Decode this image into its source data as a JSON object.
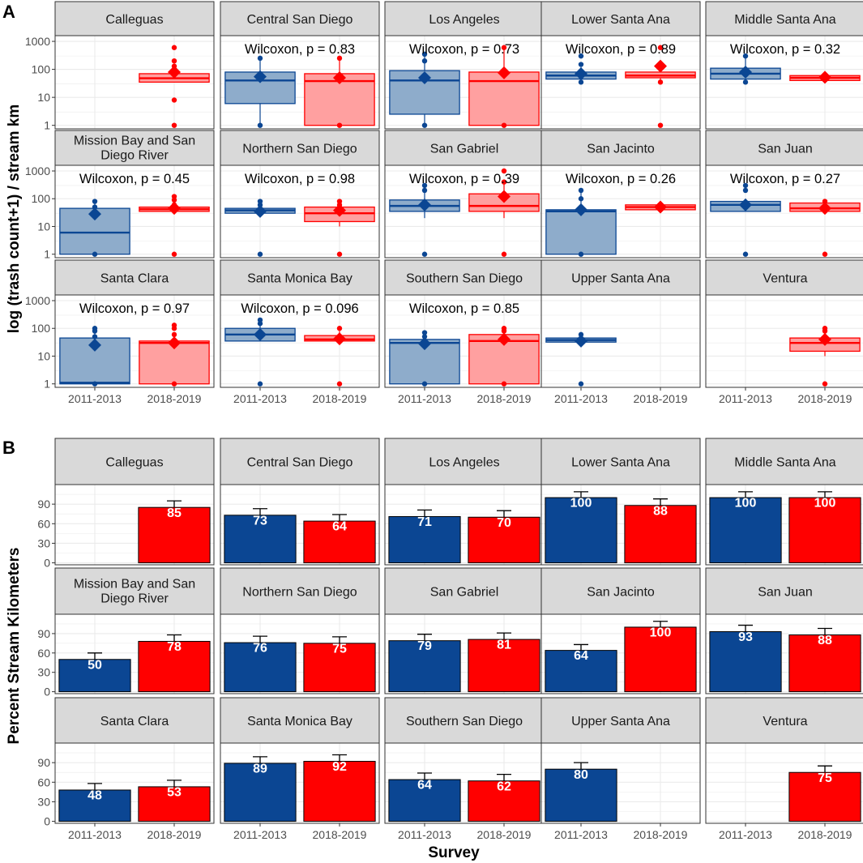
{
  "colors": {
    "blue": "#0B4693",
    "red": "#FF0000",
    "blue_fill": "#8EACCB",
    "red_fill": "#FFA0A0",
    "strip": "#D9D9D9",
    "grid": "#EBEBEB"
  },
  "chart_data": [
    {
      "id": "A",
      "type": "boxplot",
      "tag": "A",
      "ylabel": "log (trash count+1) / stream km",
      "xlabel": "",
      "yscale": "log10",
      "ylim": [
        0.75,
        1600
      ],
      "yticks": [
        1,
        10,
        100,
        1000
      ],
      "ytick_labels": [
        "1",
        "10",
        "100",
        "1000"
      ],
      "categories": [
        "2011-2013",
        "2018-2019"
      ],
      "series_names": [
        "2011-2013",
        "2018-2019"
      ],
      "facets": [
        {
          "name": "Calleguas",
          "strip": [
            "Calleguas"
          ],
          "pvalue": "",
          "boxes": [
            null,
            {
              "q1": 35,
              "median": 48,
              "q3": 70,
              "wlo": 35,
              "whi": 70,
              "mean": 80,
              "outliers": [
                1,
                8,
                100,
                130,
                200,
                600
              ]
            }
          ]
        },
        {
          "name": "Central San Diego",
          "strip": [
            "Central San Diego"
          ],
          "pvalue": "Wilcoxon, p = 0.83",
          "boxes": [
            {
              "q1": 6,
              "median": 40,
              "q3": 80,
              "wlo": 1,
              "whi": 250,
              "mean": 55,
              "outliers": [
                1,
                250
              ]
            },
            {
              "q1": 1,
              "median": 38,
              "q3": 70,
              "wlo": 1,
              "whi": 250,
              "mean": 50,
              "outliers": [
                1,
                250
              ]
            }
          ]
        },
        {
          "name": "Los Angeles",
          "strip": [
            "Los Angeles"
          ],
          "pvalue": "Wilcoxon, p = 0.73",
          "boxes": [
            {
              "q1": 2.5,
              "median": 40,
              "q3": 90,
              "wlo": 1,
              "whi": 350,
              "mean": 50,
              "outliers": [
                1,
                200,
                350
              ]
            },
            {
              "q1": 1,
              "median": 38,
              "q3": 80,
              "wlo": 1,
              "whi": 600,
              "mean": 75,
              "outliers": [
                1,
                600
              ]
            }
          ]
        },
        {
          "name": "Lower Santa Ana",
          "strip": [
            "Lower Santa Ana"
          ],
          "pvalue": "Wilcoxon, p = 0.89",
          "boxes": [
            {
              "q1": 45,
              "median": 60,
              "q3": 80,
              "wlo": 35,
              "whi": 120,
              "mean": 70,
              "outliers": [
                35,
                150,
                300
              ]
            },
            {
              "q1": 50,
              "median": 60,
              "q3": 80,
              "wlo": 35,
              "whi": 100,
              "mean": 130,
              "outliers": [
                1,
                35,
                150,
                600
              ]
            }
          ]
        },
        {
          "name": "Middle Santa Ana",
          "strip": [
            "Middle Santa Ana"
          ],
          "pvalue": "Wilcoxon, p = 0.32",
          "boxes": [
            {
              "q1": 45,
              "median": 70,
              "q3": 110,
              "wlo": 35,
              "whi": 300,
              "mean": 80,
              "outliers": [
                35,
                300
              ]
            },
            {
              "q1": 40,
              "median": 50,
              "q3": 60,
              "wlo": 40,
              "whi": 70,
              "mean": 52,
              "outliers": []
            }
          ]
        },
        {
          "name": "Mission Bay and San Diego River",
          "strip": [
            "Mission Bay and San",
            "Diego River"
          ],
          "pvalue": "Wilcoxon, p = 0.45",
          "boxes": [
            {
              "q1": 1,
              "median": 6,
              "q3": 45,
              "wlo": 1,
              "whi": 80,
              "mean": 28,
              "outliers": [
                1,
                30,
                50,
                80
              ]
            },
            {
              "q1": 35,
              "median": 42,
              "q3": 50,
              "wlo": 30,
              "whi": 60,
              "mean": 45,
              "outliers": [
                1,
                60,
                90,
                120
              ]
            }
          ]
        },
        {
          "name": "Northern San Diego",
          "strip": [
            "Northern San Diego"
          ],
          "pvalue": "Wilcoxon, p = 0.98",
          "boxes": [
            {
              "q1": 30,
              "median": 38,
              "q3": 45,
              "wlo": 25,
              "whi": 80,
              "mean": 35,
              "outliers": [
                1,
                60,
                80
              ]
            },
            {
              "q1": 15,
              "median": 30,
              "q3": 50,
              "wlo": 10,
              "whi": 80,
              "mean": 38,
              "outliers": [
                1,
                60,
                80
              ]
            }
          ]
        },
        {
          "name": "San Gabriel",
          "strip": [
            "San Gabriel"
          ],
          "pvalue": "Wilcoxon, p = 0.39",
          "boxes": [
            {
              "q1": 35,
              "median": 55,
              "q3": 90,
              "wlo": 20,
              "whi": 300,
              "mean": 60,
              "outliers": [
                1,
                200,
                300
              ]
            },
            {
              "q1": 35,
              "median": 55,
              "q3": 150,
              "wlo": 20,
              "whi": 400,
              "mean": 120,
              "outliers": [
                1,
                400,
                1000
              ]
            }
          ]
        },
        {
          "name": "San Jacinto",
          "strip": [
            "San Jacinto"
          ],
          "pvalue": "Wilcoxon, p = 0.26",
          "boxes": [
            {
              "q1": 1,
              "median": 35,
              "q3": 40,
              "wlo": 1,
              "whi": 200,
              "mean": 40,
              "outliers": [
                1,
                100,
                200
              ]
            },
            {
              "q1": 40,
              "median": 50,
              "q3": 60,
              "wlo": 40,
              "whi": 60,
              "mean": 50,
              "outliers": []
            }
          ]
        },
        {
          "name": "San Juan",
          "strip": [
            "San Juan"
          ],
          "pvalue": "Wilcoxon, p = 0.27",
          "boxes": [
            {
              "q1": 35,
              "median": 60,
              "q3": 80,
              "wlo": 35,
              "whi": 100,
              "mean": 60,
              "outliers": [
                1,
                200,
                300
              ]
            },
            {
              "q1": 35,
              "median": 45,
              "q3": 70,
              "wlo": 30,
              "whi": 80,
              "mean": 45,
              "outliers": [
                1,
                80
              ]
            }
          ]
        },
        {
          "name": "Santa Clara",
          "strip": [
            "Santa Clara"
          ],
          "pvalue": "Wilcoxon, p = 0.97",
          "boxes": [
            {
              "q1": 1,
              "median": 1.1,
              "q3": 45,
              "wlo": 1,
              "whi": 100,
              "mean": 25,
              "outliers": [
                1,
                50,
                80,
                100
              ]
            },
            {
              "q1": 1,
              "median": 30,
              "q3": 35,
              "wlo": 1,
              "whi": 60,
              "mean": 30,
              "outliers": [
                1,
                60,
                100,
                130
              ]
            }
          ]
        },
        {
          "name": "Santa Monica Bay",
          "strip": [
            "Santa Monica Bay"
          ],
          "pvalue": "Wilcoxon, p = 0.096",
          "boxes": [
            {
              "q1": 35,
              "median": 60,
              "q3": 100,
              "wlo": 35,
              "whi": 150,
              "mean": 60,
              "outliers": [
                1,
                150,
                200
              ]
            },
            {
              "q1": 35,
              "median": 40,
              "q3": 55,
              "wlo": 35,
              "whi": 80,
              "mean": 42,
              "outliers": [
                1,
                100
              ]
            }
          ]
        },
        {
          "name": "Southern San Diego",
          "strip": [
            "Southern San Diego"
          ],
          "pvalue": "Wilcoxon, p = 0.85",
          "boxes": [
            {
              "q1": 1,
              "median": 30,
              "q3": 40,
              "wlo": 1,
              "whi": 70,
              "mean": 28,
              "outliers": [
                1,
                50,
                70
              ]
            },
            {
              "q1": 1,
              "median": 35,
              "q3": 60,
              "wlo": 1,
              "whi": 100,
              "mean": 40,
              "outliers": [
                1,
                80,
                100
              ]
            }
          ]
        },
        {
          "name": "Upper Santa Ana",
          "strip": [
            "Upper Santa Ana"
          ],
          "pvalue": "",
          "boxes": [
            {
              "q1": 32,
              "median": 38,
              "q3": 45,
              "wlo": 30,
              "whi": 60,
              "mean": 35,
              "outliers": [
                1,
                60
              ]
            },
            null
          ]
        },
        {
          "name": "Ventura",
          "strip": [
            "Ventura"
          ],
          "pvalue": "",
          "boxes": [
            null,
            {
              "q1": 15,
              "median": 30,
              "q3": 45,
              "wlo": 10,
              "whi": 100,
              "mean": 40,
              "outliers": [
                1,
                80,
                100
              ]
            }
          ]
        }
      ]
    },
    {
      "id": "B",
      "type": "bar",
      "tag": "B",
      "ylabel": "Percent Stream Kilometers",
      "xlabel": "Survey",
      "ylim": [
        -3,
        120
      ],
      "yticks": [
        0,
        30,
        60,
        90
      ],
      "ytick_labels": [
        "0",
        "30",
        "60",
        "90"
      ],
      "categories": [
        "2011-2013",
        "2018-2019"
      ],
      "facets": [
        {
          "name": "Calleguas",
          "strip": [
            "Calleguas"
          ],
          "values": [
            null,
            85
          ],
          "labels": [
            "",
            "85"
          ],
          "err": [
            null,
            10
          ]
        },
        {
          "name": "Central San Diego",
          "strip": [
            "Central San Diego"
          ],
          "values": [
            73,
            64
          ],
          "labels": [
            "73",
            "64"
          ],
          "err": [
            10,
            10
          ]
        },
        {
          "name": "Los Angeles",
          "strip": [
            "Los Angeles"
          ],
          "values": [
            71,
            70
          ],
          "labels": [
            "71",
            "70"
          ],
          "err": [
            10,
            10
          ]
        },
        {
          "name": "Lower Santa Ana",
          "strip": [
            "Lower Santa Ana"
          ],
          "values": [
            100,
            88
          ],
          "labels": [
            "100",
            "88"
          ],
          "err": [
            9,
            10
          ]
        },
        {
          "name": "Middle Santa Ana",
          "strip": [
            "Middle Santa Ana"
          ],
          "values": [
            100,
            100
          ],
          "labels": [
            "100",
            "100"
          ],
          "err": [
            9,
            9
          ]
        },
        {
          "name": "Mission Bay and San Diego River",
          "strip": [
            "Mission Bay and San",
            "Diego River"
          ],
          "values": [
            50,
            78
          ],
          "labels": [
            "50",
            "78"
          ],
          "err": [
            10,
            10
          ]
        },
        {
          "name": "Northern San Diego",
          "strip": [
            "Northern San Diego"
          ],
          "values": [
            76,
            75
          ],
          "labels": [
            "76",
            "75"
          ],
          "err": [
            10,
            10
          ]
        },
        {
          "name": "San Gabriel",
          "strip": [
            "San Gabriel"
          ],
          "values": [
            79,
            81
          ],
          "labels": [
            "79",
            "81"
          ],
          "err": [
            10,
            10
          ]
        },
        {
          "name": "San Jacinto",
          "strip": [
            "San Jacinto"
          ],
          "values": [
            64,
            100
          ],
          "labels": [
            "64",
            "100"
          ],
          "err": [
            9,
            9
          ]
        },
        {
          "name": "San Juan",
          "strip": [
            "San Juan"
          ],
          "values": [
            93,
            88
          ],
          "labels": [
            "93",
            "88"
          ],
          "err": [
            10,
            10
          ]
        },
        {
          "name": "Santa Clara",
          "strip": [
            "Santa Clara"
          ],
          "values": [
            48,
            53
          ],
          "labels": [
            "48",
            "53"
          ],
          "err": [
            10,
            10
          ]
        },
        {
          "name": "Santa Monica Bay",
          "strip": [
            "Santa Monica Bay"
          ],
          "values": [
            89,
            92
          ],
          "labels": [
            "89",
            "92"
          ],
          "err": [
            10,
            10
          ]
        },
        {
          "name": "Southern San Diego",
          "strip": [
            "Southern San Diego"
          ],
          "values": [
            64,
            62
          ],
          "labels": [
            "64",
            "62"
          ],
          "err": [
            10,
            10
          ]
        },
        {
          "name": "Upper Santa Ana",
          "strip": [
            "Upper Santa Ana"
          ],
          "values": [
            80,
            null
          ],
          "labels": [
            "80",
            ""
          ],
          "err": [
            10,
            null
          ]
        },
        {
          "name": "Ventura",
          "strip": [
            "Ventura"
          ],
          "values": [
            null,
            75
          ],
          "labels": [
            "",
            "75"
          ],
          "err": [
            null,
            10
          ]
        }
      ]
    }
  ]
}
